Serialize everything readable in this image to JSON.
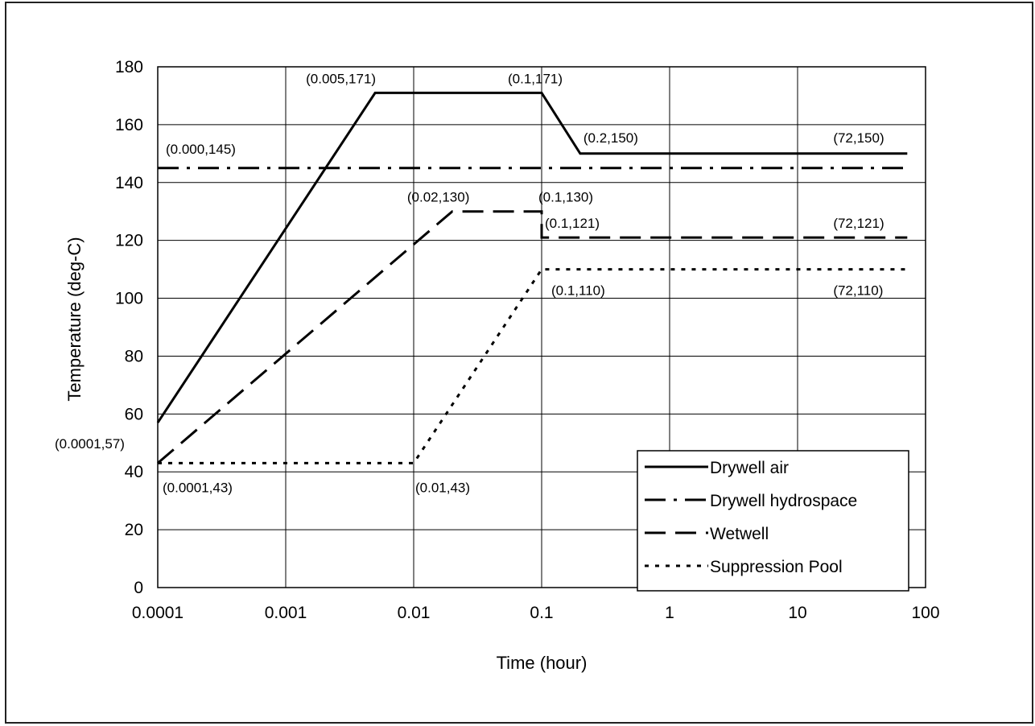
{
  "chart_data": {
    "type": "line",
    "xlabel": "Time (hour)",
    "ylabel": "Temperature (deg-C)",
    "x_scale": "log",
    "xlim": [
      0.0001,
      100
    ],
    "ylim": [
      0,
      180
    ],
    "x_ticks": [
      0.0001,
      0.001,
      0.01,
      0.1,
      1,
      10,
      100
    ],
    "x_tick_labels": [
      "0.0001",
      "0.001",
      "0.01",
      "0.1",
      "1",
      "10",
      "100"
    ],
    "y_ticks": [
      0,
      20,
      40,
      60,
      80,
      100,
      120,
      140,
      160,
      180
    ],
    "y_tick_labels": [
      "0",
      "20",
      "40",
      "60",
      "80",
      "100",
      "120",
      "140",
      "160",
      "180"
    ],
    "grid": true,
    "legend_position": "bottom-right",
    "series": [
      {
        "name": "Drywell air",
        "style": "solid",
        "points": [
          [
            0.0001,
            57
          ],
          [
            0.005,
            171
          ],
          [
            0.1,
            171
          ],
          [
            0.2,
            150
          ],
          [
            72,
            150
          ]
        ]
      },
      {
        "name": "Drywell hydrospace",
        "style": "dash-dot",
        "points": [
          [
            0.0001,
            145
          ],
          [
            72,
            145
          ]
        ]
      },
      {
        "name": "Wetwell",
        "style": "dashed",
        "points": [
          [
            0.0001,
            43
          ],
          [
            0.02,
            130
          ],
          [
            0.1,
            130
          ],
          [
            0.1,
            121
          ],
          [
            72,
            121
          ]
        ]
      },
      {
        "name": "Suppression Pool",
        "style": "dotted",
        "points": [
          [
            0.0001,
            43
          ],
          [
            0.01,
            43
          ],
          [
            0.1,
            110
          ],
          [
            72,
            110
          ]
        ]
      }
    ],
    "annotations": [
      {
        "text": "(0.005,171)",
        "x": 0.005,
        "y": 171
      },
      {
        "text": "(0.1,171)",
        "x": 0.1,
        "y": 171
      },
      {
        "text": "(0.2,150)",
        "x": 0.2,
        "y": 150
      },
      {
        "text": "(72,150)",
        "x": 72,
        "y": 150
      },
      {
        "text": "(0.000,145)",
        "x": 0.0001,
        "y": 145
      },
      {
        "text": "(0.02,130)",
        "x": 0.02,
        "y": 130
      },
      {
        "text": "(0.1,130)",
        "x": 0.1,
        "y": 130
      },
      {
        "text": "(0.1,121)",
        "x": 0.1,
        "y": 121
      },
      {
        "text": "(72,121)",
        "x": 72,
        "y": 121
      },
      {
        "text": "(0.1,110)",
        "x": 0.1,
        "y": 110
      },
      {
        "text": "(72,110)",
        "x": 72,
        "y": 110
      },
      {
        "text": "(0.0001,57)",
        "x": 0.0001,
        "y": 57
      },
      {
        "text": "(0.0001,43)",
        "x": 0.0001,
        "y": 43
      },
      {
        "text": "(0.01,43)",
        "x": 0.01,
        "y": 43
      }
    ]
  }
}
